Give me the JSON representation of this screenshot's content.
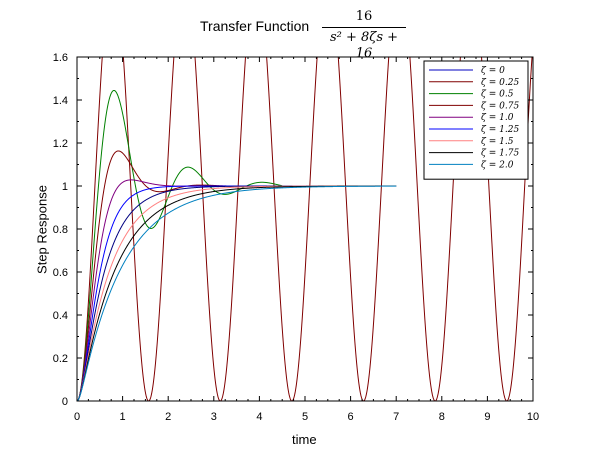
{
  "chart_data": {
    "type": "line",
    "title": "Transfer Function",
    "title_formula": {
      "numerator": "16",
      "denominator": "s² + 8ζs + 16"
    },
    "xlabel": "time",
    "ylabel": "Step Response",
    "xlim": [
      0,
      10
    ],
    "ylim": [
      0,
      1.6
    ],
    "x_ticks": [
      "0",
      "1",
      "2",
      "3",
      "4",
      "5",
      "6",
      "7",
      "8",
      "9",
      "10"
    ],
    "y_ticks": [
      "0",
      "0.2",
      "0.4",
      "0.6",
      "0.8",
      "1",
      "1.2",
      "1.4",
      "1.6"
    ],
    "grid": false,
    "legend_position": "top-right",
    "omega_n": 4,
    "series": [
      {
        "name": "ζ = 0",
        "zeta": 0,
        "color": "#800000"
      },
      {
        "name": "ζ = 0.25",
        "zeta": 0.25,
        "color": "#008000"
      },
      {
        "name": "ζ = 0.5",
        "zeta": 0.5,
        "color": "#800000"
      },
      {
        "name": "ζ = 0.75",
        "zeta": 0.75,
        "color": "#800080"
      },
      {
        "name": "ζ = 1.0",
        "zeta": 1.0,
        "color": "#0000ff"
      },
      {
        "name": "ζ = 1.25",
        "zeta": 1.25,
        "color": "#000080"
      },
      {
        "name": "ζ = 1.5",
        "zeta": 1.5,
        "color": "#ff8080"
      },
      {
        "name": "ζ = 1.75",
        "zeta": 1.75,
        "color": "#000000"
      },
      {
        "name": "ζ = 2.0",
        "zeta": 2.0,
        "color": "#0080c0"
      }
    ],
    "legend_colors": [
      "#0000c0",
      "#800000",
      "#008000",
      "#800000",
      "#800080",
      "#0000ff",
      "#ff8080",
      "#000000",
      "#0080c0"
    ]
  }
}
